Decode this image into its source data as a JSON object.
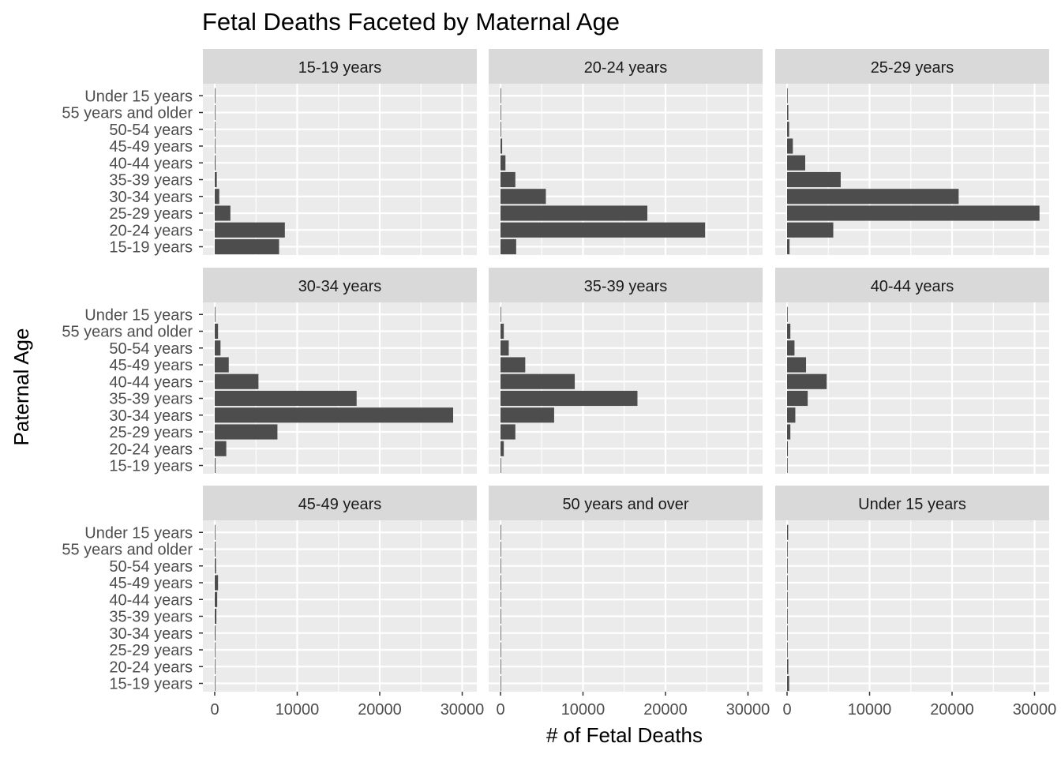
{
  "chart_data": {
    "type": "bar",
    "orientation": "horizontal",
    "title": "Fetal Deaths Faceted by Maternal Age",
    "xlabel": "# of Fetal Deaths",
    "ylabel": "Paternal Age",
    "xlim": [
      0,
      30000
    ],
    "x_ticks": [
      0,
      10000,
      20000,
      30000
    ],
    "x_tick_labels": [
      "0",
      "10000",
      "20000",
      "30000"
    ],
    "categories": [
      "15-19 years",
      "20-24 years",
      "25-29 years",
      "30-34 years",
      "35-39 years",
      "40-44 years",
      "45-49 years",
      "50-54 years",
      "55 years and older",
      "Under 15 years"
    ],
    "grid": true,
    "facets": [
      {
        "name": "15-19 years",
        "values": [
          7800,
          8500,
          1900,
          550,
          250,
          100,
          50,
          30,
          30,
          40
        ]
      },
      {
        "name": "20-24 years",
        "values": [
          1900,
          24800,
          17800,
          5500,
          1800,
          600,
          200,
          80,
          50,
          10
        ]
      },
      {
        "name": "25-29 years",
        "values": [
          300,
          5600,
          30600,
          20800,
          6500,
          2200,
          700,
          250,
          150,
          10
        ]
      },
      {
        "name": "30-34 years",
        "values": [
          100,
          1400,
          7600,
          28900,
          17200,
          5300,
          1700,
          700,
          400,
          50
        ]
      },
      {
        "name": "35-39 years",
        "values": [
          80,
          400,
          1800,
          6500,
          16600,
          9000,
          3000,
          1000,
          400,
          20
        ]
      },
      {
        "name": "40-44 years",
        "values": [
          30,
          100,
          400,
          1000,
          2500,
          4800,
          2300,
          900,
          400,
          10
        ]
      },
      {
        "name": "45-49 years",
        "values": [
          20,
          30,
          50,
          100,
          200,
          300,
          400,
          150,
          100,
          10
        ]
      },
      {
        "name": "50 years and over",
        "values": [
          5,
          10,
          20,
          30,
          40,
          60,
          80,
          60,
          60,
          5
        ]
      },
      {
        "name": "Under 15 years",
        "values": [
          250,
          150,
          30,
          10,
          5,
          5,
          5,
          5,
          5,
          130
        ]
      }
    ]
  }
}
